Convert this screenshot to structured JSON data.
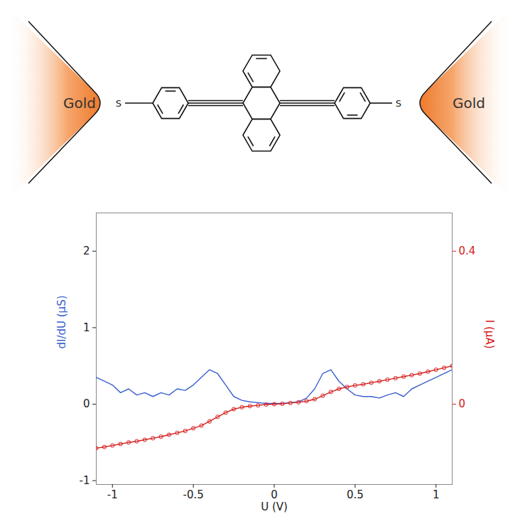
{
  "diagram": {
    "left_electrode": "Gold",
    "left_anchor": "S",
    "right_anchor": "S",
    "right_electrode": "Gold"
  },
  "chart_data": {
    "type": "line",
    "xlabel": "U (V)",
    "ylabel": "dI/dU (µS)",
    "y2label": "I (µA)",
    "x": [
      -1.1,
      -1.05,
      -1.0,
      -0.95,
      -0.9,
      -0.85,
      -0.8,
      -0.75,
      -0.7,
      -0.65,
      -0.6,
      -0.55,
      -0.5,
      -0.45,
      -0.4,
      -0.35,
      -0.3,
      -0.25,
      -0.2,
      -0.15,
      -0.1,
      -0.05,
      0,
      0.05,
      0.1,
      0.15,
      0.2,
      0.25,
      0.3,
      0.35,
      0.4,
      0.45,
      0.5,
      0.55,
      0.6,
      0.65,
      0.7,
      0.75,
      0.8,
      0.85,
      0.9,
      0.95,
      1.0,
      1.05,
      1.1
    ],
    "xlim": [
      -1.1,
      1.1
    ],
    "xticks": [
      -1,
      -0.5,
      0,
      0.5,
      1
    ],
    "ylim": [
      -1.05,
      2.5
    ],
    "yticks": [
      -1,
      0,
      1,
      2
    ],
    "y2lim": [
      -0.21,
      0.5
    ],
    "y2ticks": [
      0,
      0.4
    ],
    "series": [
      {
        "color": "#3a5fd0",
        "values": [
          0.35,
          0.3,
          0.25,
          0.15,
          0.2,
          0.12,
          0.15,
          0.1,
          0.15,
          0.12,
          0.2,
          0.18,
          0.25,
          0.35,
          0.45,
          0.4,
          0.25,
          0.1,
          0.05,
          0.03,
          0.02,
          0.01,
          0.01,
          0.01,
          0.02,
          0.03,
          0.08,
          0.2,
          0.4,
          0.45,
          0.3,
          0.2,
          0.12,
          0.1,
          0.1,
          0.08,
          0.12,
          0.15,
          0.1,
          0.2,
          0.25,
          0.3,
          0.35,
          0.4,
          0.45
        ]
      },
      {
        "color": "#d62020",
        "axis": "y2",
        "marker": "circle",
        "values": [
          -0.115,
          -0.112,
          -0.108,
          -0.104,
          -0.1,
          -0.097,
          -0.093,
          -0.089,
          -0.085,
          -0.08,
          -0.075,
          -0.07,
          -0.063,
          -0.056,
          -0.045,
          -0.033,
          -0.022,
          -0.013,
          -0.008,
          -0.005,
          -0.003,
          -0.001,
          0,
          0.001,
          0.003,
          0.005,
          0.008,
          0.013,
          0.022,
          0.032,
          0.04,
          0.045,
          0.049,
          0.052,
          0.056,
          0.06,
          0.064,
          0.068,
          0.072,
          0.076,
          0.08,
          0.085,
          0.09,
          0.095,
          0.1
        ]
      }
    ]
  }
}
